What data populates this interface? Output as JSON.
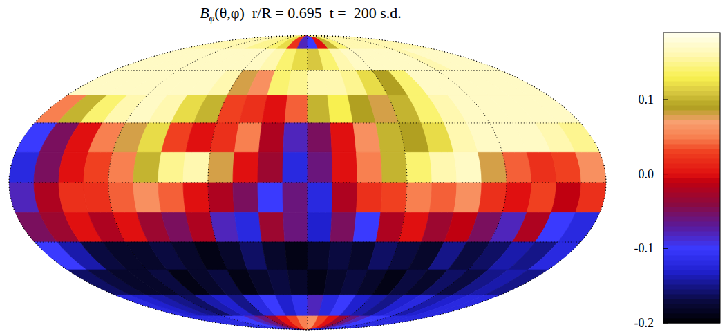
{
  "chart_data": {
    "type": "map",
    "title": {
      "symbol": "B",
      "subscript": "φ",
      "text": "(θ,φ)  r/R = 0.695  t =  200 s.d."
    },
    "xlim": [
      -180,
      180
    ],
    "ylim": [
      -90,
      90
    ],
    "xticks": [
      -180,
      -120,
      -60,
      0,
      60,
      120,
      180
    ],
    "yticks": [
      -60,
      -30,
      0,
      30,
      60
    ],
    "grid": true,
    "tick_labels": false,
    "cells": [
      [
        0.16,
        0.16,
        0.16,
        0.16,
        0.16,
        0.16,
        0.15,
        0.15,
        0.14,
        0.12,
        0.02,
        -0.08,
        -0.1,
        0.0,
        0.1,
        0.14,
        0.16,
        0.16,
        0.16,
        0.16,
        0.16,
        0.16,
        0.16,
        0.16
      ],
      [
        0.17,
        0.17,
        0.17,
        0.17,
        0.17,
        0.17,
        0.17,
        0.17,
        0.17,
        0.16,
        0.14,
        0.12,
        0.11,
        0.14,
        0.16,
        0.17,
        0.17,
        0.17,
        0.17,
        0.17,
        0.16,
        0.17,
        0.17,
        0.17
      ],
      [
        0.17,
        0.17,
        0.17,
        0.17,
        0.17,
        0.17,
        0.17,
        0.16,
        0.08,
        0.06,
        0.14,
        0.15,
        0.16,
        0.16,
        0.15,
        0.12,
        0.09,
        0.14,
        0.17,
        0.17,
        0.17,
        0.17,
        0.17,
        0.17
      ],
      [
        0.05,
        0.1,
        0.14,
        0.16,
        0.17,
        0.16,
        0.12,
        0.1,
        0.03,
        0.02,
        0.0,
        0.04,
        0.1,
        0.13,
        0.09,
        0.08,
        0.1,
        0.14,
        0.16,
        0.17,
        0.17,
        0.17,
        0.17,
        0.17
      ],
      [
        -0.1,
        -0.05,
        0.0,
        0.05,
        0.08,
        0.12,
        0.03,
        0.0,
        0.02,
        0.05,
        -0.02,
        -0.08,
        -0.05,
        0.0,
        0.06,
        0.1,
        0.09,
        0.12,
        0.16,
        0.17,
        0.17,
        0.17,
        0.16,
        0.15
      ],
      [
        -0.12,
        -0.05,
        0.0,
        0.03,
        0.05,
        0.1,
        0.15,
        0.16,
        0.08,
        0.0,
        -0.03,
        -0.12,
        -0.06,
        0.0,
        0.05,
        0.1,
        0.14,
        0.16,
        0.17,
        0.08,
        0.04,
        0.02,
        0.03,
        0.06
      ],
      [
        -0.08,
        -0.02,
        0.02,
        0.02,
        0.04,
        0.06,
        0.04,
        0.0,
        -0.02,
        -0.05,
        -0.1,
        -0.06,
        -0.12,
        -0.02,
        0.02,
        0.03,
        0.05,
        0.04,
        0.06,
        0.02,
        0.0,
        0.03,
        -0.01,
        0.02
      ],
      [
        -0.05,
        -0.03,
        0.0,
        -0.02,
        0.0,
        -0.03,
        -0.05,
        -0.02,
        -0.08,
        -0.12,
        -0.03,
        -0.06,
        -0.13,
        -0.05,
        -0.1,
        -0.02,
        0.0,
        -0.03,
        -0.01,
        -0.05,
        -0.08,
        -0.02,
        -0.1,
        -0.12
      ],
      [
        -0.1,
        -0.14,
        -0.17,
        -0.18,
        -0.18,
        -0.17,
        -0.18,
        -0.19,
        -0.18,
        -0.16,
        -0.18,
        -0.19,
        -0.18,
        -0.17,
        -0.18,
        -0.16,
        -0.17,
        -0.18,
        -0.15,
        -0.17,
        -0.16,
        -0.14,
        -0.15,
        -0.12
      ],
      [
        -0.16,
        -0.17,
        -0.18,
        -0.18,
        -0.17,
        -0.19,
        -0.18,
        -0.17,
        -0.19,
        -0.18,
        -0.17,
        -0.18,
        -0.19,
        -0.18,
        -0.17,
        -0.18,
        -0.19,
        -0.17,
        -0.18,
        -0.16,
        -0.17,
        -0.15,
        -0.14,
        -0.15
      ],
      [
        -0.12,
        -0.13,
        -0.14,
        -0.15,
        -0.16,
        -0.14,
        -0.13,
        -0.15,
        -0.12,
        -0.1,
        -0.13,
        -0.11,
        -0.08,
        -0.12,
        -0.1,
        -0.13,
        -0.14,
        -0.15,
        -0.13,
        -0.12,
        -0.14,
        -0.13,
        -0.12,
        -0.12
      ],
      [
        -0.12,
        -0.12,
        -0.12,
        -0.12,
        -0.1,
        -0.1,
        -0.08,
        -0.06,
        -0.03,
        0.0,
        0.03,
        0.05,
        0.06,
        0.03,
        0.0,
        -0.03,
        -0.06,
        -0.08,
        -0.1,
        -0.1,
        -0.12,
        -0.12,
        -0.12,
        -0.12
      ]
    ],
    "colorbar": {
      "range": [
        -0.2,
        0.19
      ],
      "ticks": [
        {
          "value": 0.1,
          "label": "0.1"
        },
        {
          "value": 0,
          "label": "0.0"
        },
        {
          "value": -0.1,
          "label": "-0.1"
        },
        {
          "value": -0.2,
          "label": "-0.2"
        }
      ]
    }
  }
}
